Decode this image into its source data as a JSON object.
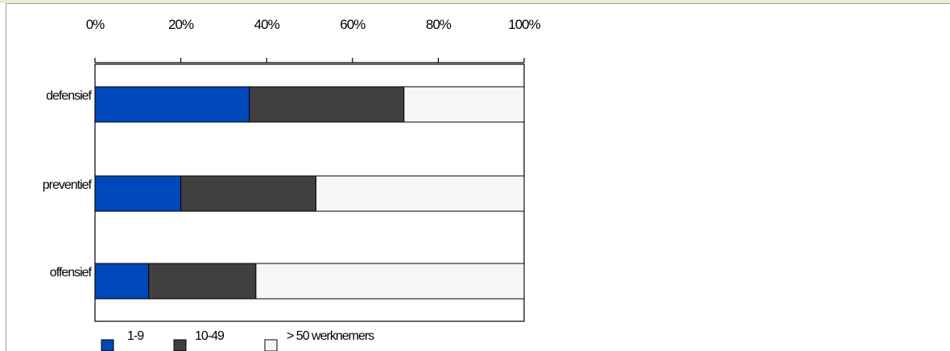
{
  "chart_data": {
    "type": "bar",
    "orientation": "horizontal",
    "stacked": true,
    "percent_stacked": true,
    "categories": [
      "defensief",
      "preventief",
      "offensief"
    ],
    "series": [
      {
        "name": "1-9",
        "values": [
          36,
          20,
          12.5
        ],
        "color": "#0047ba"
      },
      {
        "name": "10-49",
        "values": [
          36,
          31.5,
          25
        ],
        "color": "#404040"
      },
      {
        "name": "> 50 werknemers",
        "values": [
          28,
          48.5,
          62.5
        ],
        "color": "#f6f6f6"
      }
    ],
    "xticks": [
      "0%",
      "20%",
      "40%",
      "60%",
      "80%",
      "100%"
    ],
    "xlim": [
      0,
      100
    ],
    "grid": false,
    "legend": "bottom"
  }
}
